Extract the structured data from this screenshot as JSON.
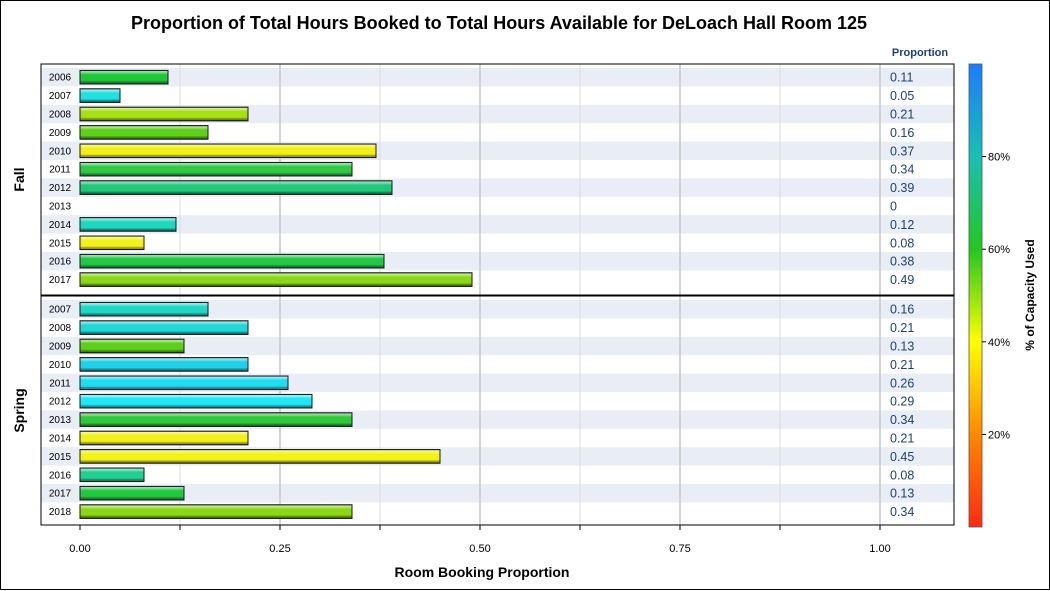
{
  "chart_data": {
    "type": "bar",
    "orientation": "horizontal",
    "title": "Proportion of Total Hours Booked to Total Hours Available for DeLoach Hall Room 125",
    "xlabel": "Room Booking Proportion",
    "xlim": [
      0,
      1
    ],
    "xticks": [
      "0.00",
      "0.25",
      "0.50",
      "0.75",
      "1.00"
    ],
    "value_column_header": "Proportion",
    "colorbar": {
      "label": "% of Capacity Used",
      "ticks": [
        "20%",
        "40%",
        "60%",
        "80%"
      ],
      "colors": [
        "#ff2a12",
        "#ff8800",
        "#ffff00",
        "#22c81e",
        "#17c0b4",
        "#1a7cff"
      ]
    },
    "groups": [
      {
        "name": "Fall",
        "categories": [
          "2006",
          "2007",
          "2008",
          "2009",
          "2010",
          "2011",
          "2012",
          "2013",
          "2014",
          "2015",
          "2016",
          "2017"
        ],
        "values": [
          0.11,
          0.05,
          0.21,
          0.16,
          0.37,
          0.34,
          0.39,
          0,
          0.12,
          0.08,
          0.38,
          0.49
        ],
        "labels": [
          "0.11",
          "0.05",
          "0.21",
          "0.16",
          "0.37",
          "0.34",
          "0.39",
          "0",
          "0.12",
          "0.08",
          "0.38",
          "0.49"
        ],
        "colors": [
          "#1ec83a",
          "#20e0e0",
          "#a8e016",
          "#5ed11a",
          "#f0f018",
          "#30c846",
          "#20c87a",
          "#1ec83a",
          "#20d8c0",
          "#f2f21a",
          "#22c846",
          "#8cd818"
        ]
      },
      {
        "name": "Spring",
        "categories": [
          "2007",
          "2008",
          "2009",
          "2010",
          "2011",
          "2012",
          "2013",
          "2014",
          "2015",
          "2016",
          "2017",
          "2018"
        ],
        "values": [
          0.16,
          0.21,
          0.13,
          0.21,
          0.26,
          0.29,
          0.34,
          0.21,
          0.45,
          0.08,
          0.13,
          0.34
        ],
        "labels": [
          "0.16",
          "0.21",
          "0.13",
          "0.21",
          "0.26",
          "0.29",
          "0.34",
          "0.21",
          "0.45",
          "0.08",
          "0.13",
          "0.34"
        ],
        "colors": [
          "#20d8c8",
          "#20d8d8",
          "#5cd01a",
          "#20d0e6",
          "#20dcf0",
          "#20e6f6",
          "#30c83a",
          "#f0f01a",
          "#f2f21a",
          "#20d090",
          "#22c840",
          "#8ad818"
        ]
      }
    ]
  }
}
